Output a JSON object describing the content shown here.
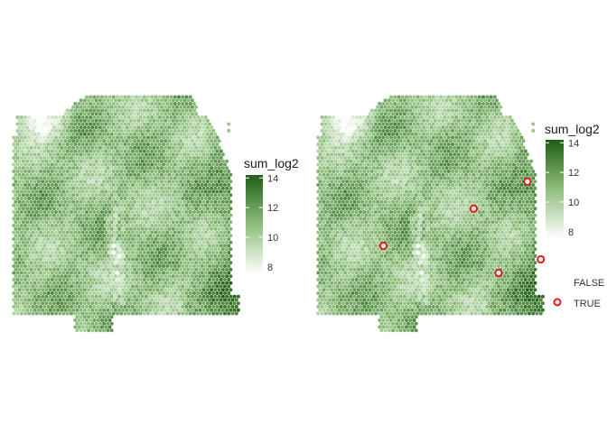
{
  "chart_data": [
    {
      "type": "scatter",
      "description_kind": "spatial spot map",
      "colorbar": {
        "title": "sum_log2",
        "ticks": [
          8,
          10,
          12,
          14
        ],
        "range": [
          7.5,
          14.2
        ],
        "low_color": "#ffffff",
        "high_color": "#1f5e14"
      },
      "highlights": []
    },
    {
      "type": "scatter",
      "description_kind": "spatial spot map with highlighted spots",
      "colorbar": {
        "title": "sum_log2",
        "ticks": [
          8,
          10,
          12,
          14
        ],
        "range": [
          7.5,
          14.2
        ],
        "low_color": "#ffffff",
        "high_color": "#1f5e14"
      },
      "outline_legend": {
        "entries": [
          {
            "label": "FALSE",
            "marker": "none"
          },
          {
            "label": "TRUE",
            "marker": "red-ring",
            "color": "#e31a1c"
          }
        ]
      },
      "highlights": [
        {
          "label": "spot-1",
          "col": 55,
          "row": 27
        },
        {
          "label": "spot-2",
          "col": 41,
          "row": 35
        },
        {
          "label": "spot-3",
          "col": 18,
          "row": 46
        },
        {
          "label": "spot-4",
          "col": 48,
          "row": 54
        },
        {
          "label": "spot-5",
          "col": 59,
          "row": 50
        }
      ]
    }
  ]
}
